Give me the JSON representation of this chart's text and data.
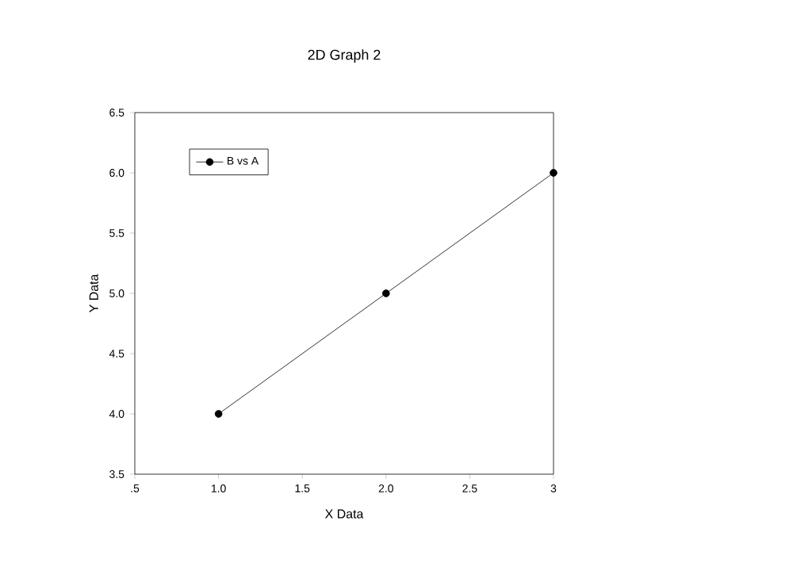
{
  "chart_data": {
    "type": "line",
    "title": "2D Graph 2",
    "xlabel": "X Data",
    "ylabel": "Y Data",
    "x": [
      1,
      2,
      3
    ],
    "series": [
      {
        "name": "B vs A",
        "color": "#000000",
        "values": [
          4,
          5,
          6
        ]
      }
    ],
    "xlim": [
      0.5,
      3
    ],
    "xticks": [
      {
        "value": 0.5,
        "label": ".5"
      },
      {
        "value": 1,
        "label": "1.0"
      },
      {
        "value": 1.5,
        "label": "1.5"
      },
      {
        "value": 2,
        "label": "2.0"
      },
      {
        "value": 2.5,
        "label": "2.5"
      },
      {
        "value": 3,
        "label": "3"
      }
    ],
    "ylim": [
      3.5,
      6.5
    ],
    "yticks": [
      {
        "value": 3.5,
        "label": "3.5"
      },
      {
        "value": 4,
        "label": "4.0"
      },
      {
        "value": 4.5,
        "label": "4.5"
      },
      {
        "value": 5,
        "label": "5.0"
      },
      {
        "value": 5.5,
        "label": "5.5"
      },
      {
        "value": 6,
        "label": "6.0"
      },
      {
        "value": 6.5,
        "label": "6.5"
      }
    ],
    "marker": "circle",
    "line_style": "solid",
    "legend": "top left",
    "grid": false
  }
}
